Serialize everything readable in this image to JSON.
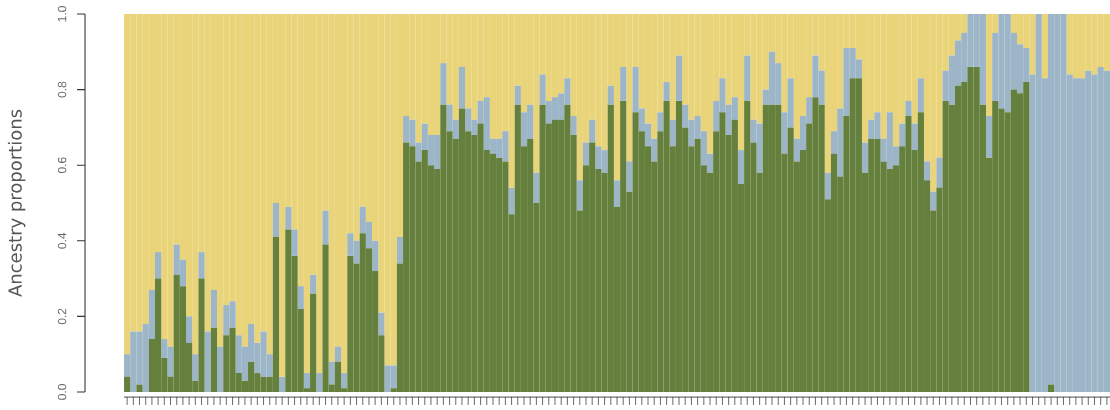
{
  "chart_data": {
    "type": "bar",
    "stacked": true,
    "ylabel": "Ancestry proportions",
    "tick_labels": "y",
    "ylim": [
      0,
      1
    ],
    "yticks": [
      {
        "value": 0,
        "label": "0.0"
      },
      0.2,
      0.4,
      0.6,
      0.8,
      {
        "value": 1,
        "label": "1.0"
      }
    ],
    "categories": [
      null,
      null,
      null,
      null,
      null,
      null,
      null,
      null,
      null,
      null,
      null,
      null,
      null,
      null,
      null,
      null,
      null,
      null,
      null,
      null,
      null,
      null,
      null,
      null,
      null,
      null,
      null,
      null,
      null,
      null,
      null,
      null,
      null,
      null,
      null,
      null,
      null,
      null,
      null,
      null,
      null,
      null,
      null,
      null,
      null,
      null,
      null,
      null,
      null,
      null,
      null,
      null,
      null,
      null,
      null,
      null,
      null,
      null,
      null,
      null,
      null,
      null,
      null,
      null,
      null,
      null,
      null,
      null,
      null,
      null,
      null,
      null,
      null,
      null,
      null,
      null,
      null,
      null,
      null,
      null,
      null,
      null,
      null,
      null,
      null,
      null,
      null,
      null,
      null,
      null,
      null,
      null,
      null,
      null,
      null,
      null,
      null,
      null,
      null,
      null,
      null,
      null,
      null,
      null,
      null,
      null,
      null,
      null,
      null,
      null,
      null,
      null,
      null,
      null,
      null,
      null,
      null,
      null,
      null,
      null,
      null,
      null,
      null,
      null,
      null,
      null,
      null,
      null,
      null,
      null,
      null,
      null,
      null,
      null,
      null,
      null,
      null,
      null,
      null,
      null,
      null,
      null,
      null,
      null,
      null,
      null,
      null,
      null,
      null,
      null,
      null,
      null,
      null,
      null,
      null,
      null,
      null,
      null,
      null
    ],
    "series": [
      {
        "color": "#657f3c",
        "values": [
          0.04,
          0,
          0.02,
          0,
          0.14,
          0.3,
          0.09,
          0.04,
          0.31,
          0.28,
          0.13,
          0.03,
          0.3,
          0,
          0.17,
          0,
          0.15,
          0.17,
          0.05,
          0.03,
          0.08,
          0.05,
          0.04,
          0.04,
          0.41,
          0,
          0.43,
          0.36,
          0.22,
          0.01,
          0.26,
          0,
          0.39,
          0.02,
          0.08,
          0.01,
          0.36,
          0.34,
          0.42,
          0.38,
          0.32,
          0.15,
          0,
          0.01,
          0.34,
          0.66,
          0.65,
          0.61,
          0.64,
          0.6,
          0.59,
          0.76,
          0.69,
          0.67,
          0.75,
          0.69,
          0.68,
          0.71,
          0.64,
          0.63,
          0.62,
          0.61,
          0.47,
          0.76,
          0.65,
          0.67,
          0.5,
          0.76,
          0.71,
          0.72,
          0.72,
          0.76,
          0.68,
          0.48,
          0.6,
          0.66,
          0.59,
          0.58,
          0.76,
          0.49,
          0.77,
          0.53,
          0.74,
          0.69,
          0.65,
          0.61,
          0.69,
          0.77,
          0.65,
          0.77,
          0.7,
          0.65,
          0.67,
          0.6,
          0.58,
          0.69,
          0.74,
          0.68,
          0.72,
          0.55,
          0.77,
          0.66,
          0.58,
          0.76,
          0.76,
          0.76,
          0.63,
          0.7,
          0.61,
          0.64,
          0.71,
          0.78,
          0.76,
          0.51,
          0.63,
          0.57,
          0.73,
          0.83,
          0.83,
          0.58,
          0.67,
          0.67,
          0.61,
          0.59,
          0.6,
          0.65,
          0.73,
          0.64,
          0.74,
          0.56,
          0.48,
          0.54,
          0.77,
          0.76,
          0.81,
          0.82,
          0.86,
          0.86,
          0.76,
          0.62,
          0.77,
          0.75,
          0.74,
          0.8,
          0.79,
          0.82,
          0,
          0,
          0,
          0.02,
          0,
          0,
          0,
          0,
          0,
          0,
          0,
          0,
          0
        ]
      },
      {
        "color": "#9cb5c7",
        "values": [
          0.06,
          0.16,
          0.14,
          0.18,
          0.13,
          0.07,
          0.05,
          0.08,
          0.08,
          0.07,
          0.07,
          0.07,
          0.07,
          0.16,
          0.1,
          0.12,
          0.08,
          0.07,
          0.1,
          0.09,
          0.1,
          0.08,
          0.12,
          0.06,
          0.09,
          0.04,
          0.06,
          0.07,
          0.06,
          0.04,
          0.05,
          0.05,
          0.09,
          0.06,
          0.04,
          0.04,
          0.06,
          0.06,
          0.07,
          0.07,
          0.08,
          0.06,
          0.07,
          0.06,
          0.07,
          0.07,
          0.07,
          0.05,
          0.07,
          0.08,
          0.09,
          0.11,
          0.07,
          0.05,
          0.11,
          0.06,
          0.04,
          0.06,
          0.14,
          0.04,
          0.05,
          0.08,
          0.07,
          0.05,
          0.09,
          0.09,
          0.08,
          0.08,
          0.06,
          0.06,
          0.07,
          0.07,
          0.05,
          0.08,
          0.06,
          0.06,
          0.06,
          0.06,
          0.05,
          0.07,
          0.09,
          0.08,
          0.12,
          0.06,
          0.06,
          0.06,
          0.05,
          0.05,
          0.07,
          0.12,
          0.06,
          0.07,
          0.06,
          0.09,
          0.05,
          0.08,
          0.09,
          0.08,
          0.06,
          0.09,
          0.12,
          0.06,
          0.13,
          0.04,
          0.14,
          0.11,
          0.11,
          0.13,
          0.06,
          0.09,
          0.07,
          0.11,
          0.09,
          0.07,
          0.06,
          0.18,
          0.18,
          0.08,
          0.05,
          0.08,
          0.05,
          0.07,
          0.06,
          0.15,
          0.05,
          0.06,
          0.04,
          0.07,
          0.09,
          0.05,
          0.05,
          0.08,
          0.08,
          0.13,
          0.12,
          0.13,
          0.14,
          0.14,
          0.24,
          0.11,
          0.18,
          0.25,
          0.26,
          0.15,
          0.13,
          0.09,
          0.84,
          1.0,
          0.83,
          0.98,
          1.0,
          1.0,
          0.84,
          0.83,
          0.83,
          0.85,
          0.84,
          0.86,
          0.85
        ]
      },
      {
        "color": "#e9d47a",
        "values": [
          0.9,
          0.84,
          0.84,
          0.82,
          0.73,
          0.63,
          0.86,
          0.88,
          0.61,
          0.65,
          0.8,
          0.9,
          0.63,
          0.84,
          0.73,
          0.88,
          0.77,
          0.76,
          0.85,
          0.88,
          0.82,
          0.87,
          0.84,
          0.9,
          0.5,
          0.96,
          0.51,
          0.57,
          0.72,
          0.95,
          0.69,
          0.95,
          0.52,
          0.92,
          0.88,
          0.95,
          0.58,
          0.6,
          0.51,
          0.55,
          0.6,
          0.79,
          0.93,
          0.93,
          0.59,
          0.27,
          0.28,
          0.34,
          0.29,
          0.32,
          0.32,
          0.13,
          0.24,
          0.28,
          0.14,
          0.25,
          0.28,
          0.23,
          0.22,
          0.33,
          0.33,
          0.31,
          0.46,
          0.19,
          0.26,
          0.24,
          0.42,
          0.16,
          0.23,
          0.22,
          0.21,
          0.17,
          0.27,
          0.44,
          0.34,
          0.28,
          0.35,
          0.36,
          0.19,
          0.44,
          0.14,
          0.39,
          0.14,
          0.25,
          0.29,
          0.33,
          0.26,
          0.18,
          0.28,
          0.11,
          0.24,
          0.28,
          0.27,
          0.31,
          0.37,
          0.23,
          0.17,
          0.24,
          0.22,
          0.36,
          0.11,
          0.28,
          0.29,
          0.2,
          0.1,
          0.13,
          0.26,
          0.17,
          0.33,
          0.27,
          0.22,
          0.11,
          0.15,
          0.42,
          0.31,
          0.25,
          0.09,
          0.09,
          0.12,
          0.34,
          0.28,
          0.26,
          0.33,
          0.26,
          0.35,
          0.29,
          0.23,
          0.29,
          0.17,
          0.39,
          0.47,
          0.38,
          0.15,
          0.11,
          0.07,
          0.05,
          0,
          0,
          0,
          0.27,
          0.05,
          0,
          0,
          0.05,
          0.08,
          0.09,
          0.16,
          0,
          0.17,
          0,
          0,
          0,
          0.16,
          0.17,
          0.17,
          0.15,
          0.16,
          0.14,
          0.15
        ]
      }
    ]
  }
}
